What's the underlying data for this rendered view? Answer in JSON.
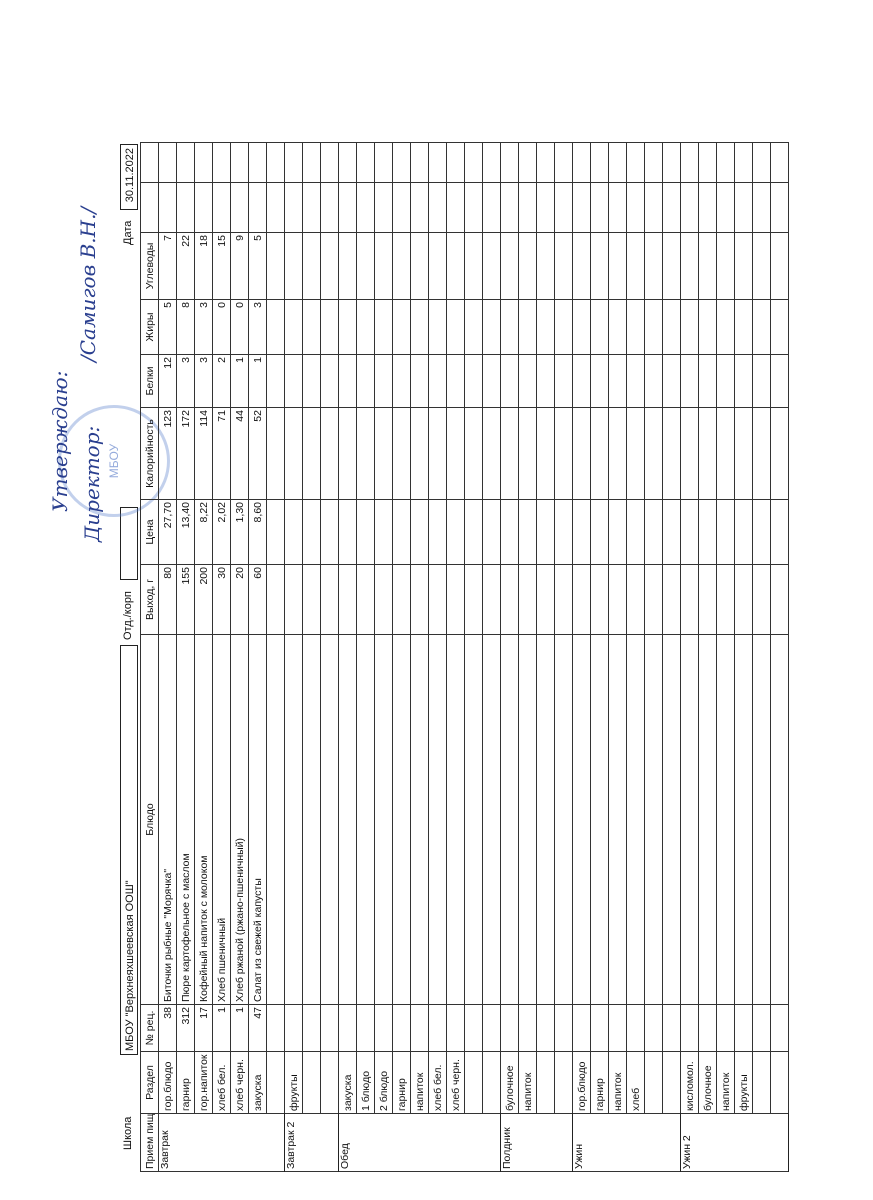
{
  "header": {
    "school_label": "Школа",
    "school": "МБОУ \"Верхнеяхшеевская ООШ\"",
    "dept_label": "Отд./корп",
    "date_label": "Дата",
    "date": "30.11.2022"
  },
  "approval": {
    "line1": "Утверждаю:",
    "line2": "Директор:",
    "signature": "/Самигов В.Н./",
    "stamp": "МБОУ"
  },
  "table": {
    "columns": [
      "Прием пищи",
      "Раздел",
      "№ рец.",
      "Блюдо",
      "Выход, г",
      "Цена",
      "Калорийность",
      "Белки",
      "Жиры",
      "Углеводы"
    ],
    "blocks": [
      {
        "meal": "Завтрак",
        "rows": [
          [
            "гор.блюдо",
            "38",
            "Биточки рыбные \"Морячка\"",
            "80",
            "27,70",
            "123",
            "12",
            "5",
            "7"
          ],
          [
            "гарнир",
            "312",
            "Пюре картофельное с маслом",
            "155",
            "13,40",
            "172",
            "3",
            "8",
            "22"
          ],
          [
            "гор.напиток",
            "17",
            "Кофейный напиток с молоком",
            "200",
            "8,22",
            "114",
            "3",
            "3",
            "18"
          ],
          [
            "хлеб бел.",
            "1",
            "Хлеб пшеничный",
            "30",
            "2,02",
            "71",
            "2",
            "0",
            "15"
          ],
          [
            "хлеб черн.",
            "1",
            "Хлеб ржаной (ржано-пшеничный)",
            "20",
            "1,30",
            "44",
            "1",
            "0",
            "9"
          ],
          [
            "закуска",
            "47",
            "Салат из свежей капусты",
            "60",
            "8,60",
            "52",
            "1",
            "3",
            "5"
          ],
          null
        ]
      },
      {
        "meal": "Завтрак 2",
        "rows": [
          [
            "фрукты",
            null,
            null,
            null,
            null,
            null,
            null,
            null,
            null
          ],
          null,
          null
        ]
      },
      {
        "meal": "Обед",
        "rows": [
          [
            "закуска",
            null,
            null,
            null,
            null,
            null,
            null,
            null,
            null
          ],
          [
            "1 блюдо",
            null,
            null,
            null,
            null,
            null,
            null,
            null,
            null
          ],
          [
            "2 блюдо",
            null,
            null,
            null,
            null,
            null,
            null,
            null,
            null
          ],
          [
            "гарнир",
            null,
            null,
            null,
            null,
            null,
            null,
            null,
            null
          ],
          [
            "напиток",
            null,
            null,
            null,
            null,
            null,
            null,
            null,
            null
          ],
          [
            "хлеб бел.",
            null,
            null,
            null,
            null,
            null,
            null,
            null,
            null
          ],
          [
            "хлеб черн.",
            null,
            null,
            null,
            null,
            null,
            null,
            null,
            null
          ],
          null,
          null
        ]
      },
      {
        "meal": "Полдник",
        "rows": [
          [
            "булочное",
            null,
            null,
            null,
            null,
            null,
            null,
            null,
            null
          ],
          [
            "напиток",
            null,
            null,
            null,
            null,
            null,
            null,
            null,
            null
          ],
          null,
          null
        ]
      },
      {
        "meal": "Ужин",
        "rows": [
          [
            "гор.блюдо",
            null,
            null,
            null,
            null,
            null,
            null,
            null,
            null
          ],
          [
            "гарнир",
            null,
            null,
            null,
            null,
            null,
            null,
            null,
            null
          ],
          [
            "напиток",
            null,
            null,
            null,
            null,
            null,
            null,
            null,
            null
          ],
          [
            "хлеб",
            null,
            null,
            null,
            null,
            null,
            null,
            null,
            null
          ],
          null,
          null
        ]
      },
      {
        "meal": "Ужин 2",
        "rows": [
          [
            "кисломол.",
            null,
            null,
            null,
            null,
            null,
            null,
            null,
            null
          ],
          [
            "булочное",
            null,
            null,
            null,
            null,
            null,
            null,
            null,
            null
          ],
          [
            "напиток",
            null,
            null,
            null,
            null,
            null,
            null,
            null,
            null
          ],
          [
            "фрукты",
            null,
            null,
            null,
            null,
            null,
            null,
            null,
            null
          ],
          null,
          null
        ]
      }
    ]
  }
}
